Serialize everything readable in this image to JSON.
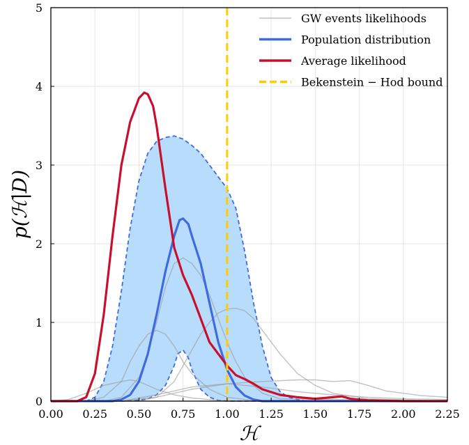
{
  "chart_data": {
    "type": "line",
    "xlabel": "ℋ",
    "ylabel": "p(ℋ|D)",
    "xlim": [
      0,
      2.25
    ],
    "ylim": [
      0,
      5
    ],
    "grid": true,
    "legend_placement": "top-right",
    "x_ticks": [
      "0.00",
      "0.25",
      "0.50",
      "0.75",
      "1.00",
      "1.25",
      "1.50",
      "1.75",
      "2.00",
      "2.25"
    ],
    "y_ticks": [
      "0",
      "1",
      "2",
      "3",
      "4",
      "5"
    ],
    "legend": [
      {
        "label": "GW events likelihoods",
        "color": "#c0c0c0",
        "style": "solid"
      },
      {
        "label": "Population distribution",
        "color": "#4169e1",
        "style": "solid"
      },
      {
        "label": "Average likelihood",
        "color": "#c8102e",
        "style": "solid"
      },
      {
        "label": "Bekenstein − Hod bound",
        "color": "#ffcc00",
        "style": "dashed"
      }
    ],
    "band": {
      "upper": {
        "x": [
          0.0,
          0.2,
          0.25,
          0.3,
          0.35,
          0.4,
          0.45,
          0.5,
          0.55,
          0.6,
          0.65,
          0.7,
          0.75,
          0.8,
          0.85,
          0.9,
          0.95,
          1.0,
          1.05,
          1.1,
          1.15,
          1.2,
          1.25,
          1.3,
          1.35,
          1.4,
          1.45,
          1.5
        ],
        "y": [
          0.0,
          0.0,
          0.05,
          0.25,
          0.7,
          1.4,
          2.2,
          2.8,
          3.15,
          3.3,
          3.35,
          3.37,
          3.33,
          3.25,
          3.15,
          3.0,
          2.85,
          2.7,
          2.45,
          1.9,
          1.25,
          0.7,
          0.3,
          0.12,
          0.05,
          0.02,
          0.0,
          0.0
        ]
      },
      "lower": {
        "x": [
          0.0,
          0.4,
          0.5,
          0.55,
          0.6,
          0.65,
          0.7,
          0.72,
          0.75,
          0.78,
          0.8,
          0.85,
          0.9,
          0.95,
          1.0,
          1.5
        ],
        "y": [
          0.0,
          0.0,
          0.01,
          0.03,
          0.08,
          0.2,
          0.45,
          0.6,
          0.65,
          0.55,
          0.4,
          0.15,
          0.05,
          0.01,
          0.0,
          0.0
        ]
      },
      "fill_color": "#b8dcfb",
      "edge_color": "#4169e1"
    },
    "series": [
      {
        "name": "Population distribution",
        "color": "#4169e1",
        "x": [
          0.0,
          0.35,
          0.4,
          0.45,
          0.5,
          0.55,
          0.6,
          0.65,
          0.7,
          0.73,
          0.75,
          0.78,
          0.8,
          0.85,
          0.9,
          0.95,
          1.0,
          1.05,
          1.1,
          1.15,
          1.2,
          1.25,
          1.3,
          2.25
        ],
        "y": [
          0.0,
          0.0,
          0.02,
          0.08,
          0.25,
          0.6,
          1.1,
          1.65,
          2.1,
          2.3,
          2.32,
          2.25,
          2.1,
          1.75,
          1.25,
          0.75,
          0.4,
          0.18,
          0.07,
          0.02,
          0.0,
          0.0,
          0.0,
          0.0
        ]
      },
      {
        "name": "Average likelihood",
        "color": "#c8102e",
        "x": [
          0.0,
          0.15,
          0.2,
          0.25,
          0.3,
          0.35,
          0.4,
          0.45,
          0.5,
          0.53,
          0.55,
          0.58,
          0.6,
          0.65,
          0.7,
          0.75,
          0.8,
          0.85,
          0.9,
          0.95,
          1.0,
          1.05,
          1.1,
          1.15,
          1.2,
          1.3,
          1.4,
          1.5,
          1.6,
          1.65,
          1.7,
          1.8,
          2.0,
          2.25
        ],
        "y": [
          0.0,
          0.0,
          0.05,
          0.35,
          1.1,
          2.1,
          3.0,
          3.55,
          3.85,
          3.92,
          3.9,
          3.75,
          3.5,
          2.7,
          1.95,
          1.6,
          1.35,
          1.05,
          0.75,
          0.6,
          0.45,
          0.33,
          0.28,
          0.22,
          0.15,
          0.08,
          0.05,
          0.03,
          0.05,
          0.06,
          0.03,
          0.01,
          0.0,
          0.0
        ]
      }
    ],
    "gw_events": [
      {
        "x": [
          0.0,
          0.1,
          0.2,
          0.3,
          0.4,
          0.45,
          0.5,
          0.55,
          0.6,
          0.7,
          0.8,
          0.9,
          1.0,
          2.25
        ],
        "y": [
          0.0,
          0.02,
          0.1,
          0.2,
          0.25,
          0.27,
          0.25,
          0.2,
          0.15,
          0.08,
          0.04,
          0.02,
          0.0,
          0.0
        ]
      },
      {
        "x": [
          0.0,
          0.2,
          0.3,
          0.4,
          0.45,
          0.5,
          0.55,
          0.6,
          0.65,
          0.7,
          0.75,
          0.8,
          0.9,
          1.0,
          1.1,
          1.2,
          2.25
        ],
        "y": [
          0.0,
          0.0,
          0.05,
          0.25,
          0.5,
          0.7,
          0.85,
          0.9,
          0.85,
          0.7,
          0.5,
          0.35,
          0.15,
          0.05,
          0.02,
          0.0,
          0.0
        ]
      },
      {
        "x": [
          0.0,
          0.3,
          0.4,
          0.5,
          0.55,
          0.6,
          0.65,
          0.7,
          0.75,
          0.8,
          0.85,
          0.9,
          0.95,
          1.0,
          1.05,
          1.1,
          1.2,
          1.3,
          2.25
        ],
        "y": [
          0.0,
          0.0,
          0.05,
          0.3,
          0.6,
          1.0,
          1.45,
          1.75,
          1.82,
          1.75,
          1.6,
          1.35,
          1.05,
          0.75,
          0.5,
          0.3,
          0.1,
          0.03,
          0.0
        ]
      },
      {
        "x": [
          0.0,
          0.5,
          0.6,
          0.7,
          0.8,
          0.85,
          0.9,
          0.95,
          1.0,
          1.05,
          1.1,
          1.15,
          1.2,
          1.3,
          1.4,
          1.5,
          1.6,
          1.8,
          2.25
        ],
        "y": [
          0.0,
          0.0,
          0.05,
          0.25,
          0.65,
          0.85,
          1.0,
          1.12,
          1.17,
          1.18,
          1.15,
          1.05,
          0.9,
          0.6,
          0.35,
          0.2,
          0.1,
          0.03,
          0.0
        ]
      },
      {
        "x": [
          0.0,
          0.4,
          0.6,
          0.8,
          1.0,
          1.2,
          1.4,
          1.5,
          1.6,
          1.7,
          1.8,
          1.9,
          2.0,
          2.1,
          2.25
        ],
        "y": [
          0.0,
          0.0,
          0.05,
          0.15,
          0.22,
          0.25,
          0.27,
          0.27,
          0.25,
          0.26,
          0.2,
          0.13,
          0.1,
          0.07,
          0.05
        ]
      },
      {
        "x": [
          0.0,
          0.4,
          0.6,
          0.8,
          1.0,
          1.2,
          1.4,
          1.6,
          1.8,
          2.0,
          2.25
        ],
        "y": [
          0.0,
          0.0,
          0.08,
          0.18,
          0.22,
          0.18,
          0.12,
          0.08,
          0.05,
          0.03,
          0.02
        ]
      }
    ],
    "vline": {
      "x": 1.0,
      "color": "#ffcc00"
    }
  }
}
